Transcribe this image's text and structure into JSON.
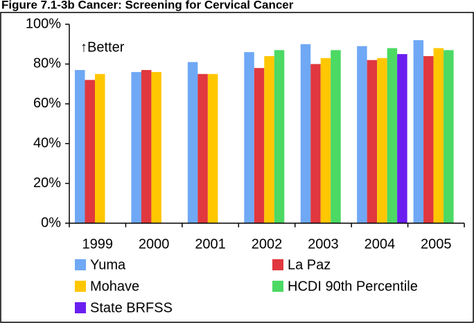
{
  "chart_data": {
    "type": "bar",
    "title": "Figure 7.1-3b Cancer: Screening for Cervical Cancer",
    "annotation": "↑Better",
    "categories": [
      "1999",
      "2000",
      "2001",
      "2002",
      "2003",
      "2004",
      "2005"
    ],
    "series": [
      {
        "name": "Yuma",
        "color": "#6fa8f5",
        "values": [
          77,
          76,
          81,
          86,
          90,
          89,
          92
        ]
      },
      {
        "name": "La Paz",
        "color": "#e0383e",
        "values": [
          72,
          77,
          75,
          78,
          80,
          82,
          84
        ]
      },
      {
        "name": "Mohave",
        "color": "#ffc700",
        "values": [
          75,
          76,
          75,
          84,
          83,
          83,
          88
        ]
      },
      {
        "name": "HCDI 90th Percentile",
        "color": "#4cd964",
        "values": [
          null,
          null,
          null,
          87,
          87,
          88,
          87
        ]
      },
      {
        "name": "State BRFSS",
        "color": "#6a1ff0",
        "values": [
          null,
          null,
          null,
          null,
          null,
          85,
          null
        ]
      }
    ],
    "ylim": [
      0,
      100
    ],
    "yticks": [
      {
        "value": 0,
        "label": "0%"
      },
      {
        "value": 20,
        "label": "20%"
      },
      {
        "value": 40,
        "label": "40%"
      },
      {
        "value": 60,
        "label": "60%"
      },
      {
        "value": 80,
        "label": "80%"
      },
      {
        "value": 100,
        "label": "100%"
      }
    ],
    "grid": false
  }
}
